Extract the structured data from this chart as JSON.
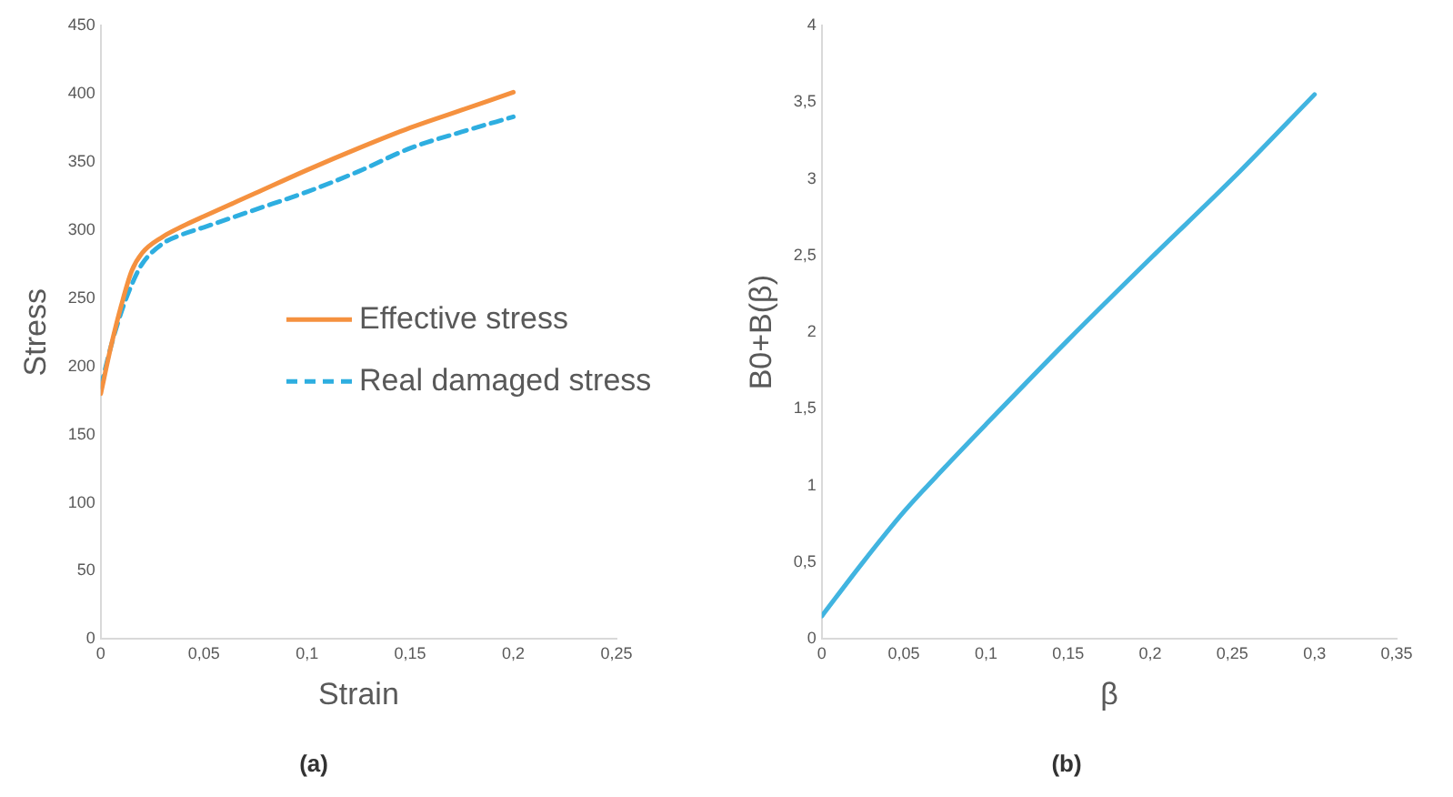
{
  "chart_data": [
    {
      "type": "line",
      "title": "(a)",
      "xlabel": "Strain",
      "ylabel": "Stress",
      "legend": "right",
      "grid": false,
      "line_style": "solid",
      "marker": "none",
      "xlim": [
        0,
        0.25
      ],
      "xticks": [
        0,
        {
          "value": 0.05,
          "label": "0,05"
        },
        {
          "value": 0.1,
          "label": "0,1"
        },
        {
          "value": 0.15,
          "label": "0,15"
        },
        {
          "value": 0.2,
          "label": "0,2"
        },
        {
          "value": 0.25,
          "label": "0,25"
        }
      ],
      "ylim": [
        0,
        450
      ],
      "yticks": [
        0,
        50,
        100,
        150,
        200,
        250,
        300,
        350,
        400,
        450
      ],
      "series": [
        {
          "name": "Effective stress",
          "color": "#f5913f",
          "x": [
            0,
            0.005,
            0.01,
            0.015,
            0.02,
            0.03,
            0.04,
            0.05,
            0.075,
            0.1,
            0.125,
            0.15,
            0.175,
            0.2
          ],
          "values": [
            180,
            215,
            245,
            270,
            283,
            295,
            303,
            310,
            327,
            344,
            360,
            375,
            388,
            401
          ]
        },
        {
          "name": "Real damaged stress",
          "color": "#2eaee0",
          "line_style": "dashed",
          "x": [
            0,
            0.005,
            0.01,
            0.015,
            0.02,
            0.03,
            0.04,
            0.05,
            0.075,
            0.1,
            0.125,
            0.15,
            0.175,
            0.2
          ],
          "values": [
            185,
            215,
            240,
            260,
            275,
            290,
            297,
            302,
            315,
            328,
            343,
            360,
            372,
            383
          ]
        }
      ]
    },
    {
      "type": "line",
      "title": "(b)",
      "xlabel": "β",
      "ylabel": "B0+B(β)",
      "legend": false,
      "grid": false,
      "line_style": "solid",
      "marker": "none",
      "xlim": [
        0,
        0.35
      ],
      "xticks": [
        0,
        {
          "value": 0.05,
          "label": "0,05"
        },
        {
          "value": 0.1,
          "label": "0,1"
        },
        {
          "value": 0.15,
          "label": "0,15"
        },
        {
          "value": 0.2,
          "label": "0,2"
        },
        {
          "value": 0.25,
          "label": "0,25"
        },
        {
          "value": 0.3,
          "label": "0,3"
        },
        {
          "value": 0.35,
          "label": "0,35"
        }
      ],
      "ylim": [
        0,
        4
      ],
      "yticks": [
        0,
        {
          "value": 0.5,
          "label": "0,5"
        },
        1,
        {
          "value": 1.5,
          "label": "1,5"
        },
        2,
        {
          "value": 2.5,
          "label": "2,5"
        },
        3,
        {
          "value": 3.5,
          "label": "3,5"
        },
        4
      ],
      "series": [
        {
          "color": "#41b4e0",
          "x": [
            0,
            0.025,
            0.05,
            0.075,
            0.1,
            0.15,
            0.2,
            0.25,
            0.3
          ],
          "values": [
            0.15,
            0.5,
            0.83,
            1.12,
            1.4,
            1.95,
            2.48,
            3.0,
            3.55
          ]
        }
      ]
    }
  ]
}
